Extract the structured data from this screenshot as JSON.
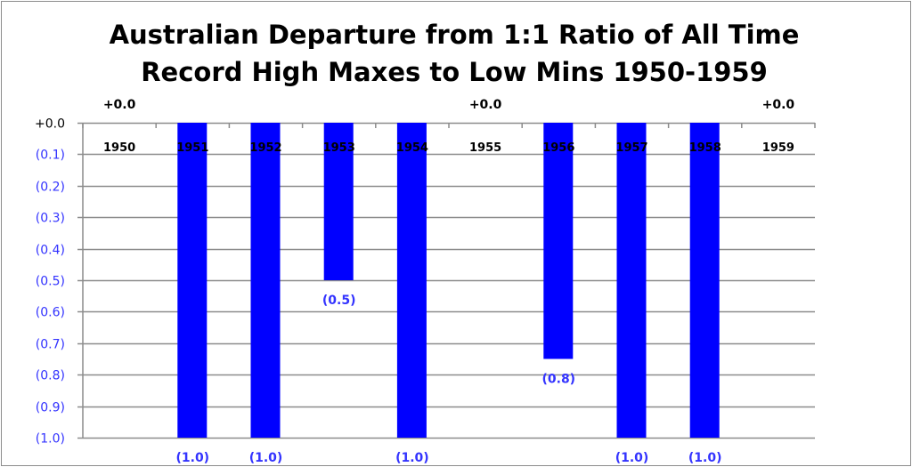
{
  "chart_data": {
    "type": "bar",
    "title": "Australian Departure from 1:1 Ratio of All Time Record High Maxes to Low Mins 1950-1959",
    "title_lines": [
      "Australian Departure from 1:1 Ratio of All Time",
      "Record High Maxes to Low Mins 1950-1959"
    ],
    "xlabel": "",
    "ylabel": "",
    "categories": [
      "1950",
      "1951",
      "1952",
      "1953",
      "1954",
      "1955",
      "1956",
      "1957",
      "1958",
      "1959"
    ],
    "values": [
      0,
      -1.0,
      -1.0,
      -0.5,
      -1.0,
      0,
      -0.75,
      -1.0,
      -1.0,
      0
    ],
    "data_labels": [
      "+0.0",
      "(1.0)",
      "(1.0)",
      "(0.5)",
      "(1.0)",
      "+0.0",
      "(0.8)",
      "(1.0)",
      "(1.0)",
      "+0.0"
    ],
    "ylim": [
      -1.0,
      0
    ],
    "yticks": [
      "+0.0",
      "(0.1)",
      "(0.2)",
      "(0.3)",
      "(0.4)",
      "(0.5)",
      "(0.6)",
      "(0.7)",
      "(0.8)",
      "(0.9)",
      "(1.0)"
    ],
    "grid": true,
    "legend": "none",
    "colors": {
      "bar": "#0000ff",
      "negative_label": "#3333ff",
      "positive_label": "#000000",
      "grid": "#8c8c8c"
    }
  }
}
